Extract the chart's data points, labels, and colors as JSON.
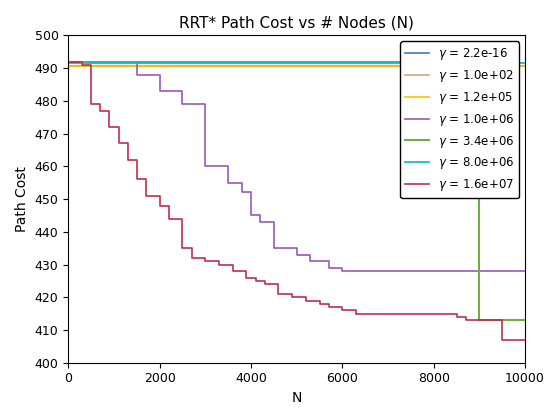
{
  "title": "RRT* Path Cost vs # Nodes (N)",
  "xlabel": "N",
  "ylabel": "Path Cost",
  "xlim": [
    0,
    10000
  ],
  "ylim": [
    400,
    500
  ],
  "yticks": [
    400,
    410,
    420,
    430,
    440,
    450,
    460,
    470,
    480,
    490,
    500
  ],
  "xticks": [
    0,
    2000,
    4000,
    6000,
    8000,
    10000
  ],
  "series": [
    {
      "label": "$\\gamma$ = 2.2e-16",
      "color": "#4472C4",
      "linewidth": 1.2,
      "x": [
        0,
        10000
      ],
      "y": [
        490.5,
        490.5
      ]
    },
    {
      "label": "$\\gamma$ = 1.0e+02",
      "color": "#D4A27A",
      "linewidth": 1.2,
      "x": [
        0,
        10000
      ],
      "y": [
        490.5,
        490.5
      ]
    },
    {
      "label": "$\\gamma$ = 1.2e+05",
      "color": "#FFC000",
      "linewidth": 1.2,
      "x": [
        0,
        10000
      ],
      "y": [
        490.5,
        490.5
      ]
    },
    {
      "label": "$\\gamma$ = 1.0e+06",
      "color": "#9B59B6",
      "linewidth": 1.2,
      "x": [
        0,
        1000,
        1500,
        2000,
        2500,
        3000,
        3500,
        3800,
        4000,
        4200,
        4500,
        5000,
        5300,
        5700,
        6000,
        6300,
        10000
      ],
      "y": [
        492,
        492,
        488,
        483,
        479,
        460,
        455,
        452,
        445,
        443,
        435,
        433,
        431,
        429,
        428,
        428,
        428
      ]
    },
    {
      "label": "$\\gamma$ = 3.4e+06",
      "color": "#70AD47",
      "linewidth": 1.5,
      "x": [
        0,
        8700,
        9000,
        10000
      ],
      "y": [
        492,
        492,
        413,
        413
      ]
    },
    {
      "label": "$\\gamma$ = 8.0e+06",
      "color": "#00B4D8",
      "linewidth": 1.2,
      "x": [
        0,
        10000
      ],
      "y": [
        491.5,
        491.5
      ]
    },
    {
      "label": "$\\gamma$ = 1.6e+07",
      "color": "#C0304A",
      "linewidth": 1.2,
      "x": [
        0,
        300,
        500,
        700,
        900,
        1100,
        1300,
        1500,
        1700,
        2000,
        2200,
        2500,
        2700,
        3000,
        3300,
        3600,
        3900,
        4100,
        4300,
        4600,
        4900,
        5200,
        5500,
        5700,
        6000,
        6300,
        6600,
        7000,
        7500,
        8000,
        8500,
        8700,
        9000,
        9500,
        9700,
        10000
      ],
      "y": [
        492,
        491,
        479,
        477,
        472,
        467,
        462,
        456,
        451,
        448,
        444,
        435,
        432,
        431,
        430,
        428,
        426,
        425,
        424,
        421,
        420,
        419,
        418,
        417,
        416,
        415,
        415,
        415,
        415,
        415,
        414,
        413,
        413,
        407,
        407,
        407
      ]
    }
  ],
  "background_color": "#FFFFFF",
  "legend_loc": "upper right",
  "legend_fontsize": 8.5,
  "title_fontsize": 11,
  "axis_fontsize": 10,
  "tick_fontsize": 9
}
